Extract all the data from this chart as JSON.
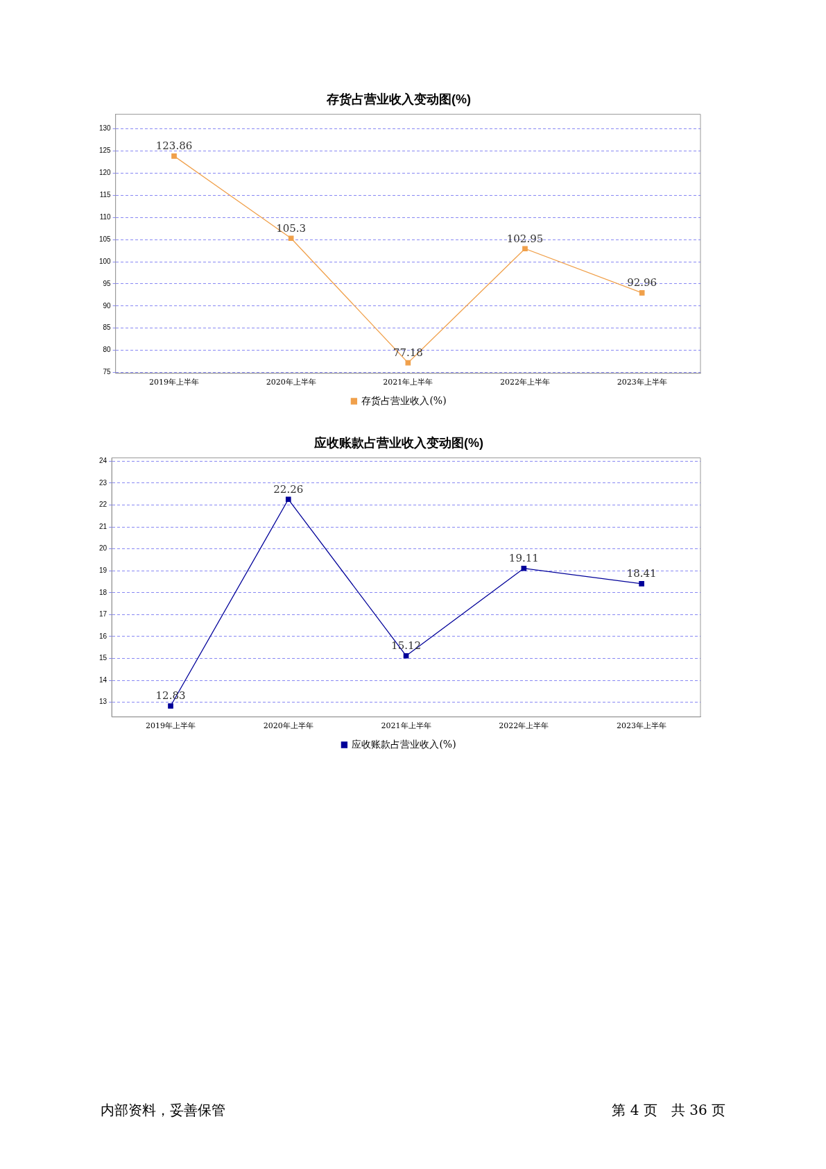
{
  "chart_data": [
    {
      "type": "line",
      "title": "存货占营业收入变动图(%)",
      "categories": [
        "2019年上半年",
        "2020年上半年",
        "2021年上半年",
        "2022年上半年",
        "2023年上半年"
      ],
      "series": [
        {
          "name": "存货占营业收入(%)",
          "color": "#f0a04b",
          "values": [
            123.86,
            105.3,
            77.18,
            102.95,
            92.96
          ]
        }
      ],
      "ylim": [
        74.8,
        133.3
      ],
      "yticks": [
        75,
        80,
        85,
        90,
        95,
        100,
        105,
        110,
        115,
        120,
        125,
        130
      ],
      "grid": "y",
      "legend": "bottom",
      "marker": "square",
      "data_labels": true
    },
    {
      "type": "line",
      "title": "应收账款占营业收入变动图(%)",
      "categories": [
        "2019年上半年",
        "2020年上半年",
        "2021年上半年",
        "2022年上半年",
        "2023年上半年"
      ],
      "series": [
        {
          "name": "应收账款占营业收入(%)",
          "color": "#000099",
          "values": [
            12.83,
            22.26,
            15.12,
            19.11,
            18.41
          ]
        }
      ],
      "ylim": [
        12.33,
        24.15
      ],
      "yticks": [
        13,
        14,
        15,
        16,
        17,
        18,
        19,
        20,
        21,
        22,
        23,
        24
      ],
      "grid": "y",
      "legend": "bottom",
      "marker": "square",
      "data_labels": true,
      "annotations": [
        "内部资料，妥善保管",
        "第 4 页　共 36 页"
      ]
    }
  ]
}
